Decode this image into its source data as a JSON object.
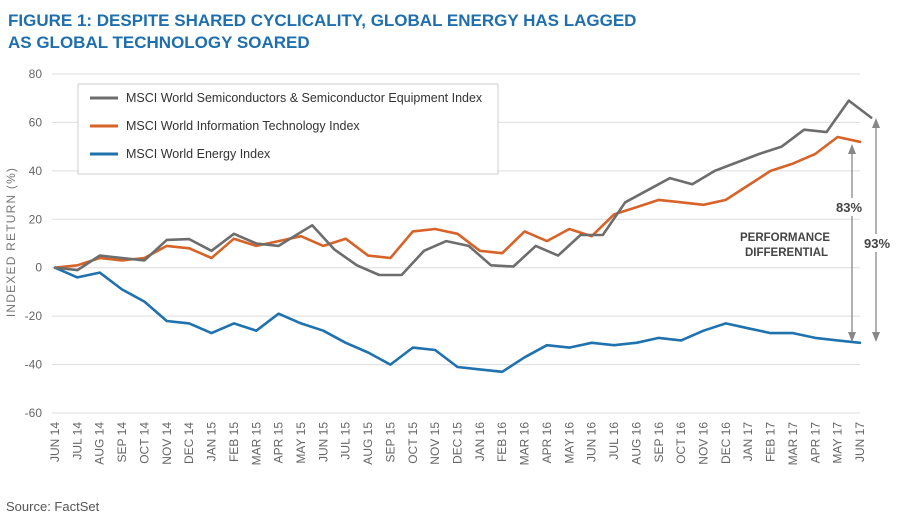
{
  "title": {
    "line1": "FIGURE 1: DESPITE SHARED CYCLICALITY, GLOBAL ENERGY HAS LAGGED",
    "line2": "AS GLOBAL TECHNOLOGY SOARED"
  },
  "source": "Source: FactSet",
  "chart_data": {
    "type": "line",
    "ylabel": "INDEXED RETURN (%)",
    "xlabel": "",
    "ylim": [
      -60,
      80
    ],
    "yticks": [
      -60,
      -40,
      -20,
      0,
      20,
      40,
      60,
      80
    ],
    "grid": true,
    "legend_position": "top-left",
    "categories": [
      "JUN 14",
      "JUL 14",
      "AUG 14",
      "SEP 14",
      "OCT 14",
      "NOV 14",
      "DEC 14",
      "JAN 15",
      "FEB 15",
      "MAR 15",
      "APR 15",
      "MAY 15",
      "JUN 15",
      "JUL 15",
      "AUG 15",
      "SEP 15",
      "OCT 15",
      "NOV 15",
      "DEC 15",
      "JAN 16",
      "FEB 16",
      "MAR 16",
      "APR 16",
      "MAY 16",
      "JUN 16",
      "JUL 16",
      "AUG 16",
      "SEP 16",
      "OCT 16",
      "NOV 16",
      "DEC 16",
      "JAN 17",
      "FEB 17",
      "MAR 17",
      "APR 17",
      "MAY 17",
      "JUN 17"
    ],
    "series": [
      {
        "name": "MSCI World Semiconductors & Semiconductor Equipment Index",
        "color": "#6d6d6d",
        "x": [
          0,
          1,
          2,
          3,
          4,
          5,
          6,
          7,
          8,
          9,
          10,
          10.7,
          11.5,
          12.5,
          13.5,
          14.5,
          15.5,
          16.5,
          17.5,
          18.5,
          19.5,
          20.5,
          21.5,
          22.5,
          23.5,
          24.5,
          25.5,
          26.5,
          27.5,
          28.5,
          29.5,
          30.5,
          31.5,
          32.5,
          33.5,
          34.5,
          35.5,
          36.5
        ],
        "values": [
          0,
          -1,
          5,
          4,
          3,
          11.5,
          11.8,
          7,
          14,
          10,
          9,
          13,
          17.5,
          7.5,
          1,
          -3,
          -3,
          7,
          11,
          9,
          1,
          0.5,
          9,
          5,
          13.5,
          13.5,
          27,
          32,
          37,
          34.5,
          40,
          43.5,
          47,
          50,
          57,
          56,
          69,
          62
        ]
      },
      {
        "name": "MSCI World Information Technology Index",
        "color": "#d76329",
        "x": [
          0,
          1,
          2,
          3,
          4,
          5,
          6,
          7,
          8,
          9,
          10,
          11,
          12,
          13,
          14,
          15,
          16,
          17,
          18,
          19,
          20,
          21,
          22,
          23,
          24,
          25,
          26,
          27,
          28,
          29,
          30,
          31,
          32,
          33,
          34,
          35,
          36
        ],
        "values": [
          0,
          1,
          4,
          3,
          4,
          9,
          8,
          4,
          12,
          9,
          11,
          13,
          9,
          12,
          5,
          4,
          15,
          16,
          14,
          7,
          6,
          15,
          11,
          16,
          13,
          22,
          25,
          28,
          27,
          26,
          28,
          34,
          40,
          43,
          47,
          54,
          52
        ]
      },
      {
        "name": "MSCI World Energy Index",
        "color": "#1f72ad",
        "x": [
          0,
          1,
          2,
          3,
          4,
          5,
          6,
          7,
          8,
          9,
          10,
          11,
          12,
          13,
          14,
          15,
          16,
          17,
          18,
          19,
          20,
          21,
          22,
          23,
          24,
          25,
          26,
          27,
          28,
          29,
          30,
          31,
          32,
          33,
          34,
          35,
          36
        ],
        "values": [
          0,
          -4,
          -2,
          -9,
          -14,
          -22,
          -23,
          -27,
          -23,
          -26,
          -19,
          -23,
          -26,
          -31,
          -35,
          -40,
          -33,
          -34,
          -41,
          -42,
          -43,
          -37,
          -32,
          -33,
          -31,
          -32,
          -31,
          -29,
          -30,
          -26,
          -23,
          -25,
          -27,
          -27,
          -29,
          -30,
          -31
        ]
      }
    ],
    "annotations": {
      "performance_label_line1": "PERFORMANCE",
      "performance_label_line2": "DIFFERENTIAL",
      "it_energy_gap": "83%",
      "semi_energy_gap": "93%"
    }
  }
}
